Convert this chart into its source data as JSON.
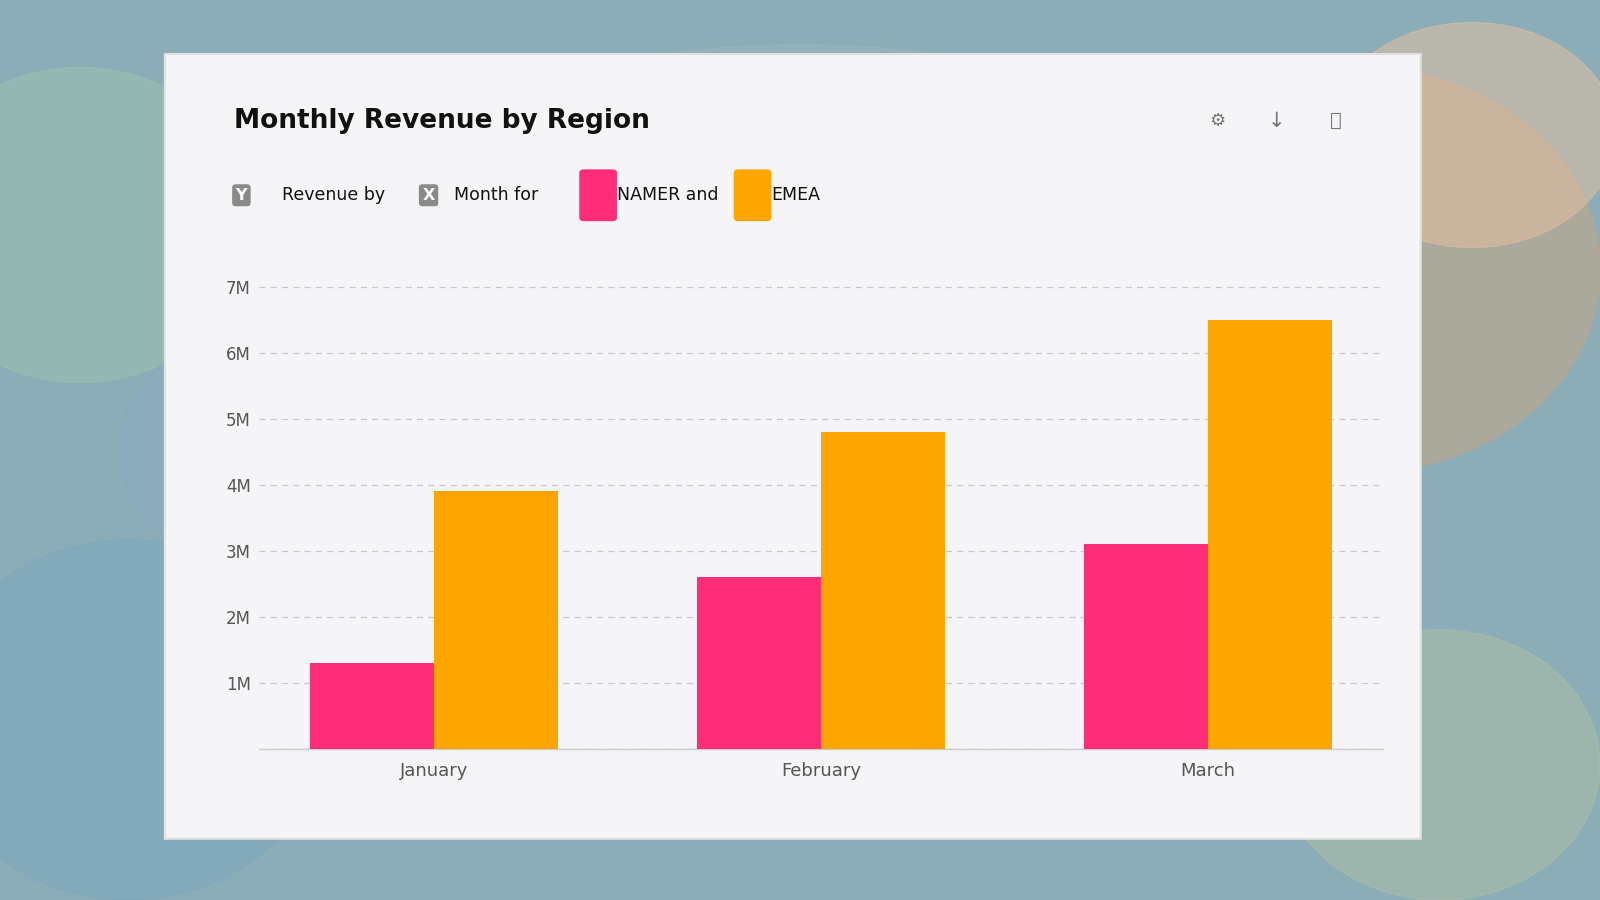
{
  "title": "Monthly Revenue by Region",
  "months": [
    "January",
    "February",
    "March"
  ],
  "namer_values": [
    1.3,
    2.6,
    3.1
  ],
  "emea_values": [
    3.9,
    4.8,
    6.5
  ],
  "namer_color": "#FF2D78",
  "emea_color": "#FFA500",
  "ylim_max": 7500000,
  "yticks": [
    0,
    1000000,
    2000000,
    3000000,
    4000000,
    5000000,
    6000000,
    7000000
  ],
  "ytick_labels": [
    "",
    "1M",
    "2M",
    "3M",
    "4M",
    "5M",
    "6M",
    "7M"
  ],
  "card_color": "#F5F5F7",
  "title_fontsize": 19,
  "subtitle_fontsize": 12.5,
  "tick_fontsize": 12,
  "bar_width": 0.32,
  "grid_color": "#C8C8C8",
  "axis_color": "#CCCCCC",
  "text_color": "#111111",
  "tick_color": "#555555",
  "badge_color": "#8A8A8A",
  "icon_color": "#777777"
}
